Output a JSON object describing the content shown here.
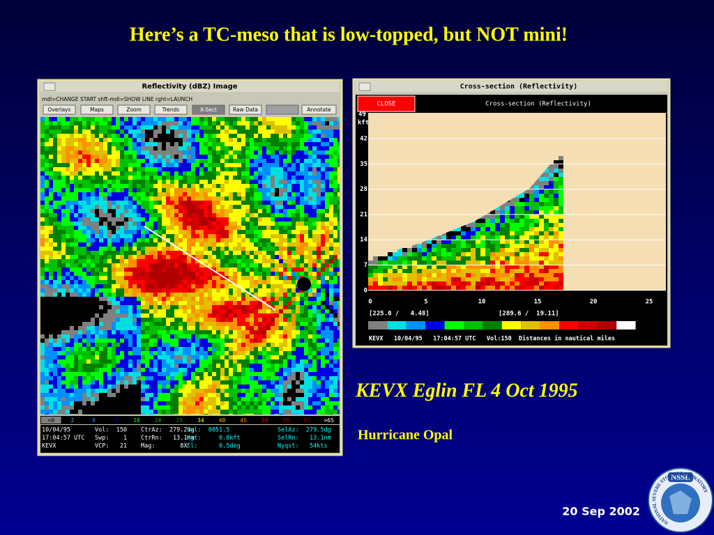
{
  "slide": {
    "title": "Here’s a TC-meso that is low-topped, but NOT mini!",
    "caption": "KEVX Eglin FL 4 Oct 1995",
    "subcaption": "Hurricane Opal",
    "date": "20 Sep 2002"
  },
  "logo": {
    "acronym": "NSSL",
    "ring": "NATIONAL SEVERE STORMS LABORATORY"
  },
  "left_window": {
    "title": "Reflectivity (dBZ) Image",
    "hint": "mdl=CHANGE START shft-mdl=SHOW LINE rght=LAUNCH",
    "buttons": [
      "Overlays",
      "Maps",
      "Zoom",
      "Trends",
      "X-Sect",
      "Raw Data",
      "Annotate"
    ],
    "legend": [
      "<0",
      "2",
      "8",
      "13",
      "18",
      "24",
      "29",
      "34",
      "40",
      "45",
      "50",
      "55",
      "61",
      ">65"
    ],
    "info": [
      [
        "10/04/95",
        "Vol:  150",
        "CtrAz:  279.2dg",
        "Val:  0051.5",
        "SelAz:  279.5dg"
      ],
      [
        "17:04:57 UTC",
        "Swp:    1",
        "CtrRn:   13.1nm",
        "Hgt:     0.8kft",
        "SelRn:   13.1nm"
      ],
      [
        "KEVX",
        "VCP:   21",
        "Mag:       8X",
        "El:      0.5deg",
        "Nyqst:   54kts"
      ]
    ]
  },
  "right_window": {
    "title": "Cross-section (Reflectivity)",
    "close": "CLOSE",
    "header": "Cross-section (Reflectivity)",
    "y_unit": [
      "49",
      "kft"
    ],
    "yticks": [
      "42",
      "35",
      "28",
      "21",
      "14",
      "7",
      "0"
    ],
    "xticks": [
      "0",
      "5",
      "10",
      "15",
      "20",
      "25"
    ],
    "start_point": "[225.0 /   4.48]",
    "end_point": "[289.6 /  19.11]",
    "footer": "KEVX   10/04/95   17:04:57 UTC   Vol:150  Distances in nautical miles"
  }
}
